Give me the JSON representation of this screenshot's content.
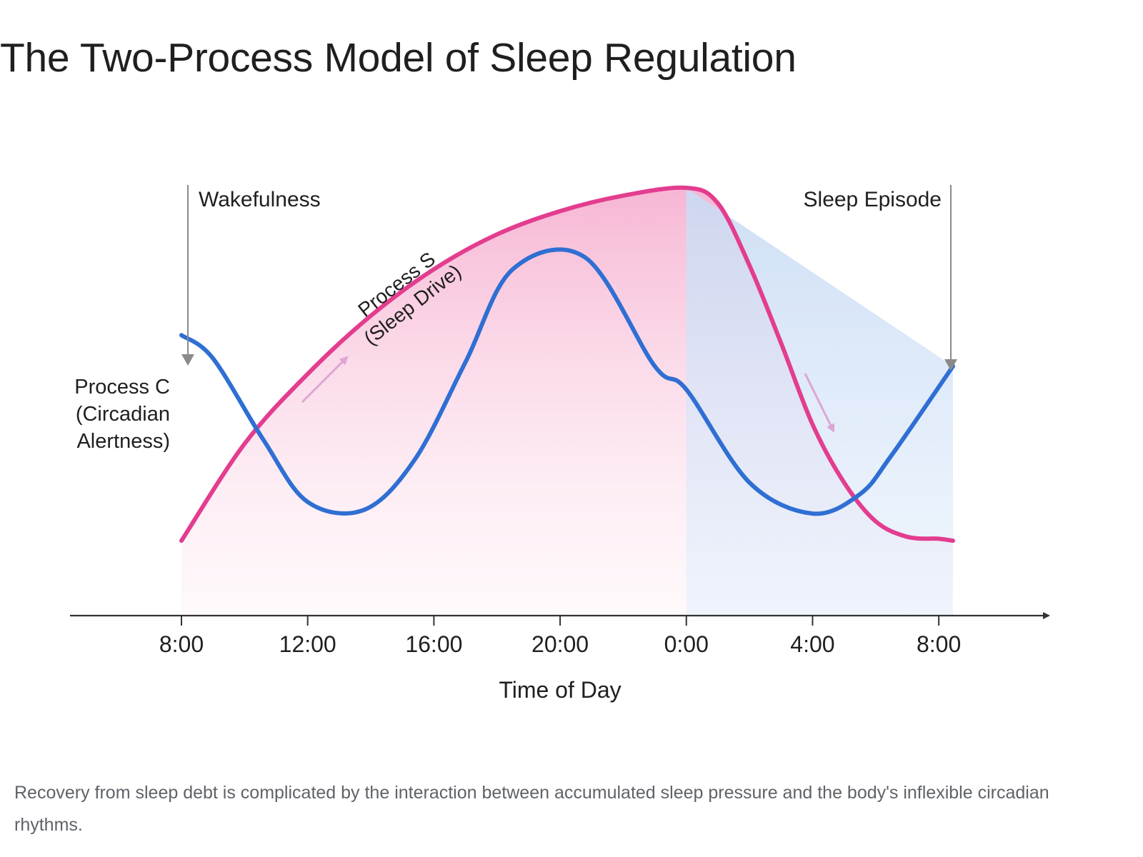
{
  "title": "The Two-Process Model of Sleep Regulation",
  "caption": "Recovery from sleep debt is complicated by the interaction between accumulated sleep pressure and the body's inflexible circadian rhythms.",
  "chart_data": {
    "type": "line",
    "xlabel": "Time of Day",
    "ylabel": "",
    "tick_labels": [
      "8:00",
      "12:00",
      "16:00",
      "20:00",
      "0:00",
      "4:00",
      "8:00"
    ],
    "tick_hours": [
      0,
      4,
      8,
      12,
      16,
      20,
      24
    ],
    "xlim": [
      0,
      24.45
    ],
    "ylim": [
      0,
      1
    ],
    "grid": false,
    "legend": "none",
    "series": [
      {
        "name": "Process S (Sleep Drive)",
        "label_lines": [
          "Process S",
          "(Sleep Drive)"
        ],
        "color": "#e33d8f",
        "x": [
          0,
          2,
          4,
          6,
          8,
          10,
          12,
          14,
          16,
          17,
          18,
          19,
          20,
          21,
          22,
          23,
          24,
          24.45
        ],
        "y": [
          0.09,
          0.34,
          0.52,
          0.67,
          0.79,
          0.88,
          0.94,
          0.98,
          1.0,
          0.96,
          0.8,
          0.6,
          0.39,
          0.24,
          0.14,
          0.1,
          0.095,
          0.09
        ]
      },
      {
        "name": "Process C (Circadian Alertness)",
        "label_lines": [
          "Process C",
          "(Circadian",
          "Alertness)"
        ],
        "color": "#2f6fd3",
        "x": [
          0,
          1,
          2.6,
          4,
          5.8,
          7.4,
          9,
          10.5,
          12.8,
          15,
          16,
          18,
          20,
          21.5,
          22.5,
          24.45
        ],
        "y": [
          0.62,
          0.56,
          0.35,
          0.19,
          0.17,
          0.3,
          0.55,
          0.79,
          0.82,
          0.54,
          0.48,
          0.24,
          0.16,
          0.21,
          0.31,
          0.54
        ]
      }
    ],
    "annotations": {
      "wake_label": "Wakefulness",
      "sleep_label": "Sleep Episode"
    },
    "sleep_region": [
      16,
      24.45
    ],
    "colors": {
      "axis": "#333333",
      "arrow": "#8a8a8a",
      "hint_arrow": "#dda6d3",
      "pink_fill": "#f7b7d5",
      "blue_fill": "#cfe0f7"
    }
  }
}
